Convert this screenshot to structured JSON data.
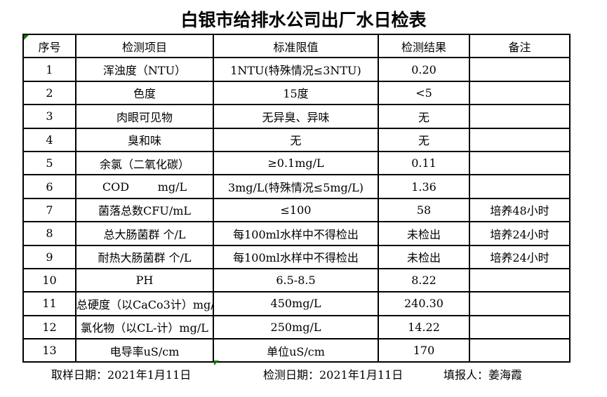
{
  "title": "白银市给排水公司出厂水日检表",
  "table": {
    "headers": [
      "序号",
      "检测项目",
      "标准限值",
      "检测结果",
      "备注"
    ],
    "rows": [
      {
        "no": "1",
        "item": "浑浊度（NTU）",
        "limit": "1NTU(特殊情况≤3NTU)",
        "result": "0.20",
        "remark": ""
      },
      {
        "no": "2",
        "item": "色度",
        "limit": "15度",
        "result": "<5",
        "remark": ""
      },
      {
        "no": "3",
        "item": "肉眼可见物",
        "limit": "无异臭、异味",
        "result": "无",
        "remark": ""
      },
      {
        "no": "4",
        "item": "臭和味",
        "limit": "无",
        "result": "无",
        "remark": ""
      },
      {
        "no": "5",
        "item": "余氯（二氧化碳）",
        "limit": "≥0.1mg/L",
        "result": "0.11",
        "remark": ""
      },
      {
        "no": "6",
        "item": "COD        mg/L",
        "limit": "3mg/L(特殊情况≤5mg/L)",
        "result": "1.36",
        "remark": ""
      },
      {
        "no": "7",
        "item": "菌落总数CFU/mL",
        "limit": "≤100",
        "result": "58",
        "remark": "培养48小时"
      },
      {
        "no": "8",
        "item": "总大肠菌群 个/L",
        "limit": "每100ml水样中不得检出",
        "result": "未检出",
        "remark": "培养24小时"
      },
      {
        "no": "9",
        "item": "耐热大肠菌群 个/L",
        "limit": "每100ml水样中不得检出",
        "result": "未检出",
        "remark": "培养24小时"
      },
      {
        "no": "10",
        "item": "PH",
        "limit": "6.5-8.5",
        "result": "8.22",
        "remark": ""
      },
      {
        "no": "11",
        "item": "总硬度（以CaCo3计）mg/L",
        "limit": "450mg/L",
        "result": "240.30",
        "remark": ""
      },
      {
        "no": "12",
        "item": "氯化物（以CL-计）mg/L",
        "limit": "250mg/L",
        "result": "14.22",
        "remark": ""
      },
      {
        "no": "13",
        "item": "电导率uS/cm",
        "limit": "单位uS/cm",
        "result": "170",
        "remark": ""
      }
    ]
  },
  "footer": {
    "sample_date": "取样日期：2021年1月11日",
    "test_date": "检测日期：2021年1月11日",
    "reporter": "填报人：姜海霞"
  },
  "colors": {
    "background": "#ffffff",
    "border": "#000000",
    "error_indicator_green": "#0a7d0a"
  }
}
